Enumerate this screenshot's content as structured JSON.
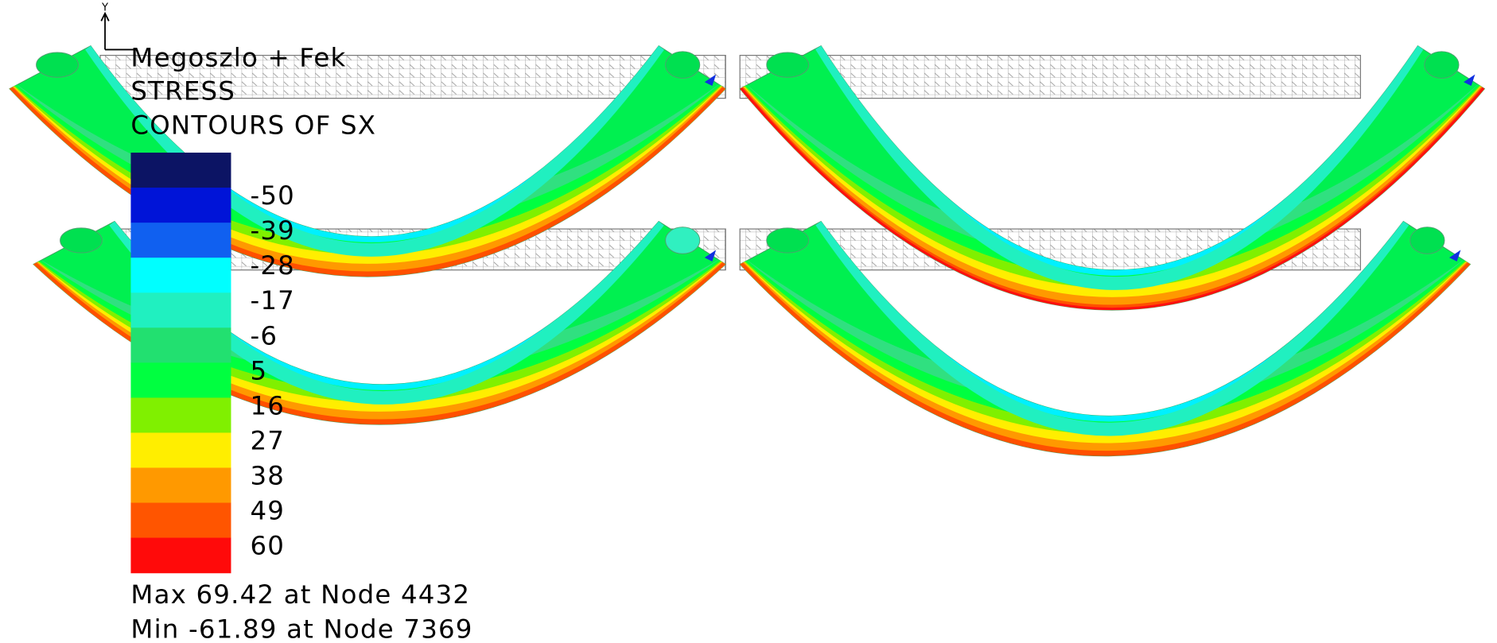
{
  "axis_label": "Y",
  "header": {
    "lines": [
      "Megoszlo + Fek",
      "STRESS",
      "CONTOURS OF SX"
    ]
  },
  "legend": {
    "levels": [
      -50,
      -39,
      -28,
      -17,
      -6,
      5,
      16,
      27,
      38,
      49,
      60
    ]
  },
  "footer": {
    "max": "Max 69.42 at Node 4432",
    "min": "Min -61.89 at Node 7369"
  }
}
